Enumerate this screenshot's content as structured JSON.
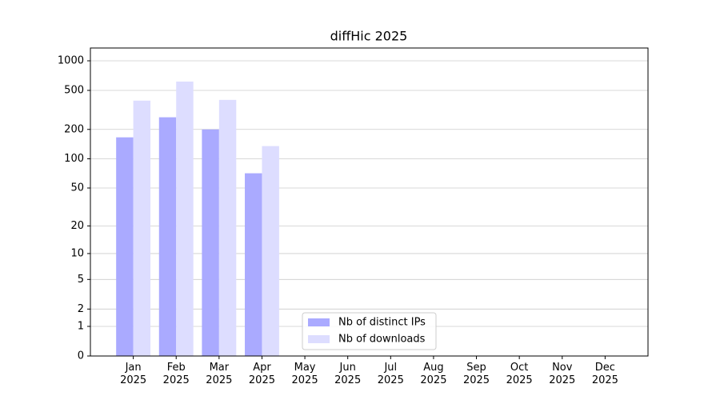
{
  "chart_data": {
    "type": "bar",
    "title": "diffHic 2025",
    "categories": [
      "Jan\n2025",
      "Feb\n2025",
      "Mar\n2025",
      "Apr\n2025",
      "May\n2025",
      "Jun\n2025",
      "Jul\n2025",
      "Aug\n2025",
      "Sep\n2025",
      "Oct\n2025",
      "Nov\n2025",
      "Dec\n2025"
    ],
    "series": [
      {
        "name": "Nb of distinct IPs",
        "color": "#aaaaff",
        "values": [
          166,
          266,
          200,
          71,
          null,
          null,
          null,
          null,
          null,
          null,
          null,
          null
        ]
      },
      {
        "name": "Nb of downloads",
        "color": "#ddddff",
        "values": [
          393,
          615,
          400,
          135,
          null,
          null,
          null,
          null,
          null,
          null,
          null,
          null
        ]
      }
    ],
    "yscale": "log1p",
    "ylim": [
      0,
      1350
    ],
    "yticks": [
      0,
      1,
      2,
      5,
      10,
      20,
      50,
      100,
      200,
      500,
      1000
    ],
    "grid": true,
    "legend": "lower center"
  }
}
